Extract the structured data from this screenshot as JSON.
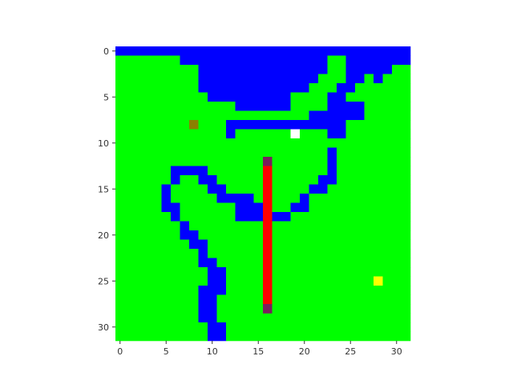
{
  "grid": {
    "rows": 32,
    "cols": 32,
    "colors": {
      "W": "#0000ff",
      "G": "#00ff00"
    },
    "map": [
      "WWWWWWWWWWWWWWWWWWWWWWWWWWWWWWWW",
      "GGGGGGGWWWWWWWWWWWWWWWWGGWWWWWWW",
      "GGGGGGGGGWWWWWWWWWWWWWWGGWWWWWGG",
      "GGGGGGGGGWWWWWWWWWWWWWGGGWWGWGGG",
      "GGGGGGGGGWWWWWWWWWWWWGGGWWGGGGGG",
      "GGGGGGGGGGWWWWWWWWWGGGGWWGGGGGGG",
      "GGGGGGGGGGGGGWWWWWWGGGGWWWWGGGGG",
      "GGGGGGGGGGGGGGGGGGGGGWWWWWWGGGGG",
      "GGGGGGGGGGGGWWWWWWWWWWWWWGGGGGGG",
      "GGGGGGGGGGGGWGGGGGGGGGGWWGGGGGGG",
      "GGGGGGGGGGGGGGGGGGGGGGGGGGGGGGGG",
      "GGGGGGGGGGGGGGGGGGGGGGGWGGGGGGGG",
      "GGGGGGGGGGGGGGGGGGGGGGGWGGGGGGGG",
      "GGGGGGWWWWGGGGGGGGGGGGGWGGGGGGGG",
      "GGGGGGWGGWWGGGGGGGGGGGWWGGGGGGGG",
      "GGGGGWGGGGWWGGGGGGGGGWWGGGGGGGGG",
      "GGGGGWGGGGGWWWWGGGGGWGGGGGGGGGGG",
      "GGGGGWWGGGGGGWWWWGGWWGGGGGGGGGGG",
      "GGGGGGWGGGGGGWWWWWWGGGGGGGGGGGGG",
      "GGGGGGGWGGGGGGGGGGGGGGGGGGGGGGGG",
      "GGGGGGGWWGGGGGGGGGGGGGGGGGGGGGGG",
      "GGGGGGGGWWGGGGGGGGGGGGGGGGGGGGGG",
      "GGGGGGGGGWGGGGGGGGGGGGGGGGGGGGGG",
      "GGGGGGGGGWWGGGGGGGGGGGGGGGGGGGGG",
      "GGGGGGGGGGWWGGGGGGGGGGGGGGGGGGGG",
      "GGGGGGGGGGWWGGGGGGGGGGGGGGGGGGGG",
      "GGGGGGGGGWWWGGGGGGGGGGGGGGGGGGGG",
      "GGGGGGGGGWWGGGGGGGGGGGGGGGGGGGGG",
      "GGGGGGGGGWWGGGGGGGGGGGGGGGGGGGGG",
      "GGGGGGGGGWWGGGGGGGGGGGGGGGGGGGGG",
      "GGGGGGGGGGWWGGGGGGGGGGGGGGGGGGGG",
      "GGGGGGGGGGWWGGGGGGGGGGGGGGGGGGGG"
    ]
  },
  "objects": [
    {
      "name": "olive-tile",
      "row": 8,
      "col": 8,
      "color": "#8b8000"
    },
    {
      "name": "white-tile",
      "row": 9,
      "col": 19,
      "color": "#ffffff"
    },
    {
      "name": "yellow-tile",
      "row": 25,
      "col": 28,
      "color": "#ffff00"
    }
  ],
  "bar": {
    "col": 16,
    "row_start": 12,
    "row_end": 28,
    "color": "#ff0000",
    "end_color": "#7a1f5c"
  },
  "axes": {
    "x_ticks": [
      "0",
      "5",
      "10",
      "15",
      "20",
      "25",
      "30"
    ],
    "y_ticks": [
      "0",
      "5",
      "10",
      "15",
      "20",
      "25",
      "30"
    ],
    "tick_values": [
      0,
      5,
      10,
      15,
      20,
      25,
      30
    ],
    "color": "#333333"
  }
}
